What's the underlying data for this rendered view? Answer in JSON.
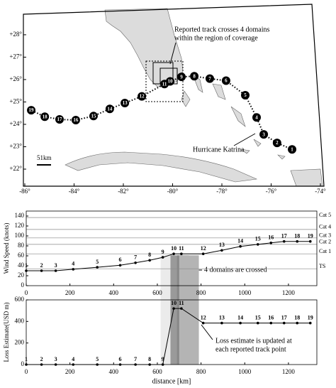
{
  "chart_data": [
    {
      "type": "map",
      "annotations": [
        "Reported track crosses 4 domains",
        "within the region of coverage",
        "Hurricane Katrina",
        "51km"
      ],
      "x": [
        -75.15,
        -75.76,
        -76.3,
        -76.59,
        -77.05,
        -77.83,
        -78.49,
        -79.12,
        -79.64,
        -80.1,
        -80.33,
        -81.25,
        -81.94,
        -82.55,
        -83.21,
        -83.93,
        -84.59,
        -85.19,
        -85.74
      ],
      "y": [
        22.88,
        23.17,
        23.55,
        24.31,
        25.3,
        25.95,
        26.04,
        26.15,
        26.12,
        25.92,
        25.8,
        25.25,
        24.95,
        24.69,
        24.37,
        24.19,
        24.22,
        24.34,
        24.63
      ],
      "point_labels": [
        "1",
        "2",
        "3",
        "4",
        "5",
        "6",
        "7",
        "8",
        "9",
        "10",
        "11",
        "12",
        "13",
        "14",
        "15",
        "16",
        "17",
        "18",
        "19"
      ],
      "color": "#000000",
      "xlim": [
        -86,
        -74
      ],
      "ylim": [
        22,
        28.6
      ],
      "xticks": [
        {
          "value": -86,
          "label": "-86°"
        },
        {
          "value": -84,
          "label": "-84°"
        },
        {
          "value": -82,
          "label": "-82°"
        },
        {
          "value": -80,
          "label": "-80°"
        },
        {
          "value": -78,
          "label": "-78°"
        },
        {
          "value": -76,
          "label": "-76°"
        },
        {
          "value": -74,
          "label": "-74°"
        }
      ],
      "yticks": [
        {
          "value": 22,
          "label": "+22°"
        },
        {
          "value": 23,
          "label": "+23°"
        },
        {
          "value": 24,
          "label": "+24°"
        },
        {
          "value": 25,
          "label": "+25°"
        },
        {
          "value": 26,
          "label": "+26°"
        },
        {
          "value": 27,
          "label": "+27°"
        },
        {
          "value": 28,
          "label": "+28°"
        }
      ]
    },
    {
      "type": "line",
      "ylabel": "Wind Speed (knots)",
      "x": [
        0,
        70,
        135,
        215,
        325,
        430,
        500,
        565,
        625,
        675,
        710,
        810,
        895,
        980,
        1060,
        1120,
        1180,
        1240,
        1300
      ],
      "values": [
        30,
        30,
        30,
        33,
        37,
        41,
        46,
        51,
        57,
        64,
        64,
        64,
        71,
        79,
        83,
        86,
        89,
        89,
        89
      ],
      "point_labels": [
        "1",
        "2",
        "3",
        "4",
        "5",
        "6",
        "7",
        "8",
        "9",
        "10",
        "11",
        "12",
        "13",
        "14",
        "15",
        "16",
        "17",
        "18",
        "19"
      ],
      "color": "#000000",
      "xlim": [
        0,
        1330
      ],
      "ylim": [
        0,
        150
      ],
      "xticks": [
        0,
        200,
        400,
        600,
        800,
        1000,
        1200
      ],
      "yticks": [
        0,
        20,
        40,
        60,
        80,
        100,
        120,
        140
      ],
      "category_lines": [
        {
          "label": "Cat 5",
          "value": 137
        },
        {
          "label": "Cat 4",
          "value": 113
        },
        {
          "label": "Cat 3",
          "value": 96
        },
        {
          "label": "Cat 2",
          "value": 83
        },
        {
          "label": "Cat 1",
          "value": 64
        },
        {
          "label": "TS",
          "value": 34
        }
      ],
      "regions": [
        {
          "start": 615,
          "end": 675,
          "color": "#ebebeb"
        },
        {
          "start": 660,
          "end": 700,
          "color": "#9a9a9a"
        },
        {
          "start": 690,
          "end": 745,
          "color": "#888888"
        },
        {
          "start": 700,
          "end": 790,
          "color": "#b4b4b4"
        }
      ],
      "annotation": "4 domains are crossed"
    },
    {
      "type": "line",
      "ylabel": "Loss Estimate(USD m)",
      "xlabel": "distance [km]",
      "x": [
        0,
        70,
        135,
        215,
        325,
        430,
        500,
        565,
        625,
        675,
        710,
        810,
        895,
        980,
        1060,
        1120,
        1180,
        1240,
        1300
      ],
      "values": [
        0,
        0,
        0,
        0,
        0,
        0,
        0,
        0,
        0,
        520,
        520,
        385,
        385,
        385,
        385,
        385,
        385,
        385,
        385
      ],
      "point_labels": [
        "1",
        "2",
        "3",
        "4",
        "5",
        "6",
        "7",
        "8",
        "9",
        "10",
        "11",
        "12",
        "13",
        "14",
        "15",
        "16",
        "17",
        "18",
        "19"
      ],
      "color": "#000000",
      "xlim": [
        0,
        1330
      ],
      "ylim": [
        0,
        600
      ],
      "xticks": [
        0,
        200,
        400,
        600,
        800,
        1000,
        1200
      ],
      "yticks": [
        0,
        200,
        400,
        600
      ],
      "annotations": [
        "Loss estimate is updated at",
        "each reported track point"
      ]
    }
  ]
}
